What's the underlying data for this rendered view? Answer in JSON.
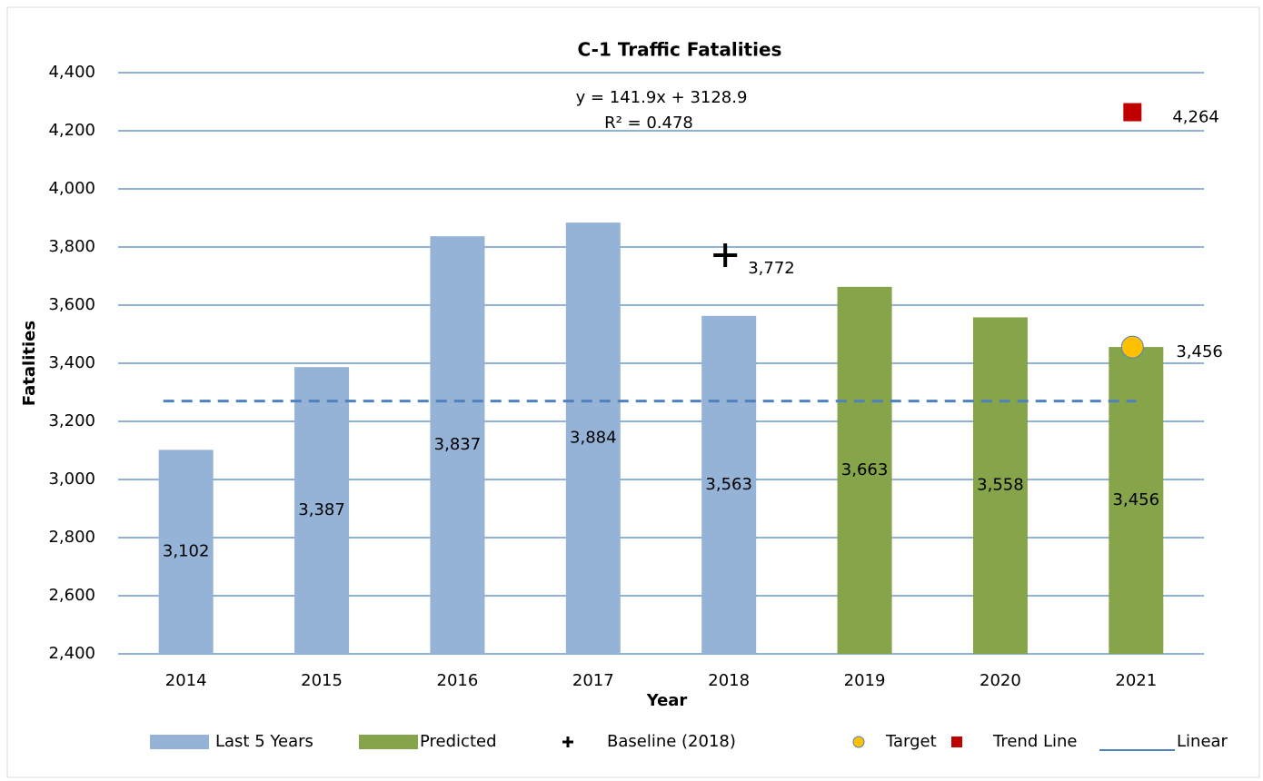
{
  "chart_data": {
    "type": "bar",
    "title": "C-1 Traffic Fatalities",
    "annotations": [
      "y = 141.9x + 3128.9",
      "R² = 0.478"
    ],
    "xlabel": "Year",
    "ylabel": "Fatalities",
    "categories": [
      "2014",
      "2015",
      "2016",
      "2017",
      "2018",
      "2019",
      "2020",
      "2021"
    ],
    "ylim": [
      2400,
      4400
    ],
    "yticks": [
      {
        "value": 2400,
        "label": "2,400"
      },
      {
        "value": 2600,
        "label": "2,600"
      },
      {
        "value": 2800,
        "label": "2,800"
      },
      {
        "value": 3000,
        "label": "3,000"
      },
      {
        "value": 3200,
        "label": "3,200"
      },
      {
        "value": 3400,
        "label": "3,400"
      },
      {
        "value": 3600,
        "label": "3,600"
      },
      {
        "value": 3800,
        "label": "3,800"
      },
      {
        "value": 4000,
        "label": "4,000"
      },
      {
        "value": 4200,
        "label": "4,200"
      },
      {
        "value": 4400,
        "label": "4,400"
      }
    ],
    "grid": true,
    "legend": "bottom",
    "series": [
      {
        "name": "Last 5 Years",
        "type": "bar",
        "color": "#95b3d7",
        "values": [
          3102,
          3387,
          3837,
          3884,
          3563,
          null,
          null,
          null
        ],
        "value_labels": [
          "3,102",
          "3,387",
          "3,837",
          "3,884",
          "3,563",
          null,
          null,
          null
        ]
      },
      {
        "name": "Predicted",
        "type": "bar",
        "color": "#86a44a",
        "values": [
          null,
          null,
          null,
          null,
          null,
          3663,
          3558,
          3456
        ],
        "value_labels": [
          null,
          null,
          null,
          null,
          null,
          "3,663",
          "3,558",
          "3,456"
        ]
      },
      {
        "name": "Baseline (2018)",
        "type": "scatter",
        "marker": "plus",
        "color": "#000000",
        "values": [
          null,
          null,
          null,
          null,
          3772,
          null,
          null,
          null
        ],
        "value_labels": [
          null,
          null,
          null,
          null,
          "3,772",
          null,
          null,
          null
        ]
      },
      {
        "name": "Target",
        "type": "scatter",
        "marker": "circle",
        "color": "#ffc000",
        "values": [
          null,
          null,
          null,
          null,
          null,
          null,
          null,
          3456
        ],
        "value_labels": [
          null,
          null,
          null,
          null,
          null,
          null,
          null,
          "3,456"
        ]
      },
      {
        "name": "Trend Line",
        "type": "scatter",
        "marker": "square",
        "color": "#c00000",
        "values": [
          null,
          null,
          null,
          null,
          null,
          null,
          null,
          4264
        ],
        "value_labels": [
          null,
          null,
          null,
          null,
          null,
          null,
          null,
          "4,264"
        ]
      },
      {
        "name": "Linear",
        "type": "line",
        "dashed": true,
        "color": "#4f81bd",
        "values": [
          3270,
          3270,
          3270,
          3270,
          3270,
          3270,
          3270,
          3270
        ]
      }
    ]
  }
}
